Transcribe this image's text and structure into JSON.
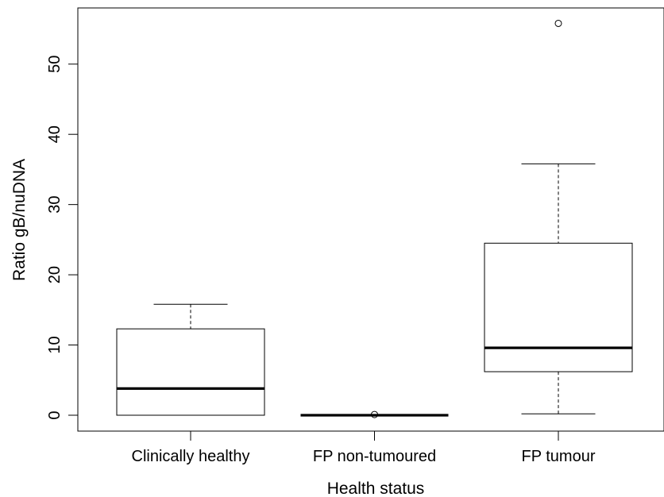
{
  "chart_data": {
    "type": "box",
    "xlabel": "Health status",
    "ylabel": "Ratio gB/nuDNA",
    "ylim": [
      -2.3,
      60
    ],
    "yticks": [
      0,
      10,
      20,
      30,
      40,
      50
    ],
    "grid": false,
    "legend": "none",
    "categories": [
      "Clinically healthy",
      "FP non-tumoured",
      "FP tumour"
    ],
    "boxes": [
      {
        "category": "Clinically healthy",
        "min": 0,
        "q1": 0,
        "median": 3.8,
        "q3": 12.3,
        "max": 15.8,
        "outliers": []
      },
      {
        "category": "FP non-tumoured",
        "min": 0,
        "q1": 0,
        "median": 0,
        "q3": 0,
        "max": 0,
        "outliers": [
          0.1
        ]
      },
      {
        "category": "FP tumour",
        "min": 0.2,
        "q1": 6.2,
        "median": 9.6,
        "q3": 24.5,
        "max": 35.8,
        "outliers": [
          55.8
        ]
      }
    ]
  }
}
